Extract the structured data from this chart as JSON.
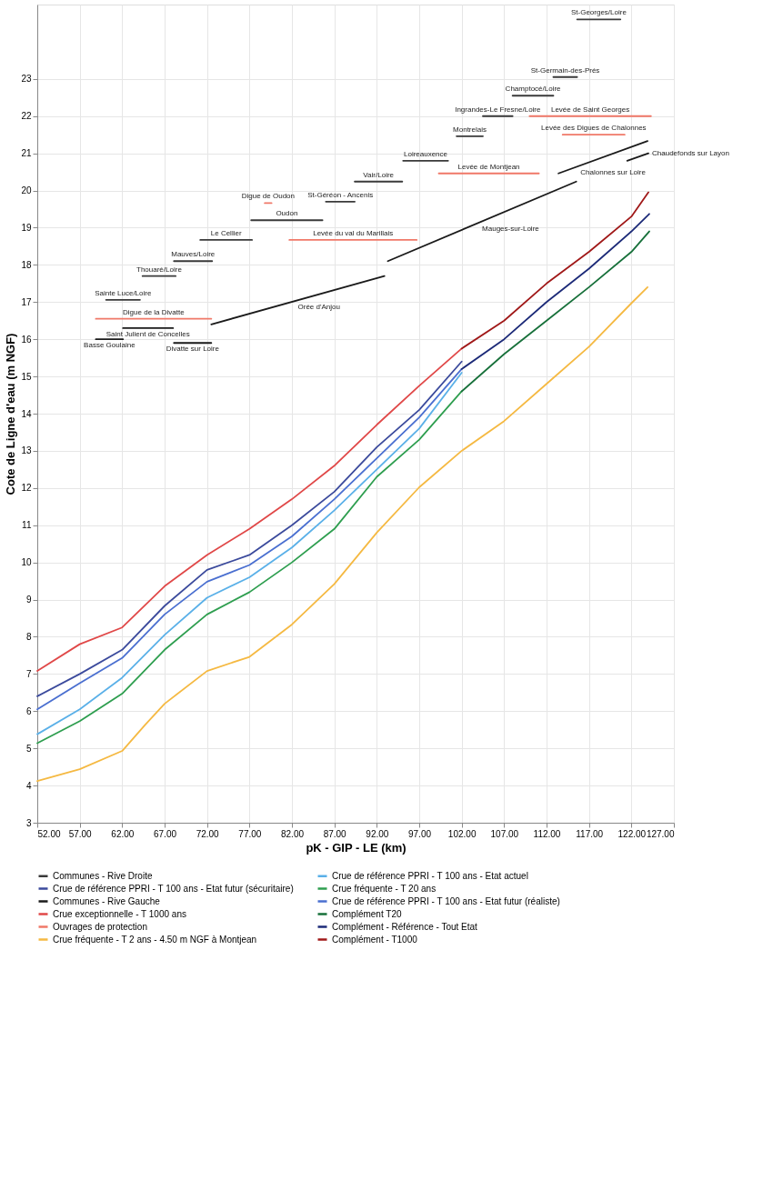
{
  "chart_data": {
    "type": "line",
    "xlabel": "pK - GIP - LE (km)",
    "ylabel": "Cote de Ligne d'eau (m NGF)",
    "xlim": [
      52,
      127
    ],
    "ylim": [
      3,
      25
    ],
    "xticks": [
      {
        "value": 52,
        "label": "52.00"
      },
      {
        "value": 57,
        "label": "57.00"
      },
      {
        "value": 62,
        "label": "62.00"
      },
      {
        "value": 67,
        "label": "67.00"
      },
      {
        "value": 72,
        "label": "72.00"
      },
      {
        "value": 77,
        "label": "77.00"
      },
      {
        "value": 82,
        "label": "82.00"
      },
      {
        "value": 87,
        "label": "87.00"
      },
      {
        "value": 92,
        "label": "92.00"
      },
      {
        "value": 97,
        "label": "97.00"
      },
      {
        "value": 102,
        "label": "102.00"
      },
      {
        "value": 107,
        "label": "107.00"
      },
      {
        "value": 112,
        "label": "112.00"
      },
      {
        "value": 117,
        "label": "117.00"
      },
      {
        "value": 122,
        "label": "122.00"
      },
      {
        "value": 127,
        "label": "127.00"
      }
    ],
    "yticks": [
      3,
      4,
      5,
      6,
      7,
      8,
      9,
      10,
      11,
      12,
      13,
      14,
      15,
      16,
      17,
      18,
      19,
      20,
      21,
      22,
      23
    ],
    "grid": true,
    "legend": "bottom",
    "line_style": "solid",
    "marker": "none",
    "series": [
      {
        "name": "Communes - Rive Droite",
        "color": "#3a3a3a",
        "x": [
          60.1,
          64.1,
          null,
          64.4,
          68.3,
          null,
          68.1,
          72.6,
          null,
          71.2,
          77.3,
          null,
          77.2,
          85.6,
          null,
          86.0,
          89.4,
          null,
          89.4,
          95.0,
          null,
          95.1,
          100.4,
          null,
          101.4,
          104.5,
          null,
          104.5,
          108.0,
          null,
          108.0,
          112.8,
          null,
          112.8,
          115.6,
          null,
          115.6,
          120.7
        ],
        "values": [
          17.06,
          17.06,
          null,
          17.7,
          17.7,
          null,
          18.1,
          18.1,
          null,
          18.67,
          18.67,
          null,
          19.2,
          19.2,
          null,
          19.7,
          19.7,
          null,
          20.24,
          20.24,
          null,
          20.8,
          20.8,
          null,
          21.46,
          21.46,
          null,
          22.0,
          22.0,
          null,
          22.55,
          22.55,
          null,
          23.05,
          23.05,
          null,
          24.6,
          24.6
        ]
      },
      {
        "name": "Crue de référence PPRI - T 100 ans - Etat actuel",
        "color": "#5ab0e8",
        "x": [
          52,
          57,
          62,
          67,
          72,
          77,
          82,
          87,
          92,
          97,
          102
        ],
        "values": [
          5.38,
          6.05,
          6.9,
          8.05,
          9.05,
          9.6,
          10.4,
          11.4,
          12.5,
          13.6,
          15.1
        ]
      },
      {
        "name": "Crue de référence PPRI - T 100 ans - Etat futur (sécuritaire)",
        "color": "#3b4a9c",
        "x": [
          52,
          57,
          62,
          67,
          72,
          77,
          82,
          87,
          92,
          97,
          102
        ],
        "values": [
          6.4,
          7.0,
          7.65,
          8.83,
          9.8,
          10.2,
          11.0,
          11.9,
          13.1,
          14.1,
          15.4
        ]
      },
      {
        "name": "Crue fréquente - T 20 ans",
        "color": "#2e9e4f",
        "x": [
          52,
          57,
          62,
          67,
          72,
          77,
          82,
          87,
          92,
          97,
          102
        ],
        "values": [
          5.14,
          5.73,
          6.47,
          7.65,
          8.6,
          9.2,
          10.0,
          10.9,
          12.3,
          13.3,
          14.6
        ]
      },
      {
        "name": "Communes - Rive Gauche",
        "color": "#1a1a1a",
        "x": [
          58.9,
          62.1,
          null,
          62.1,
          68.0,
          null,
          68.1,
          72.5,
          null,
          72.5,
          92.9,
          null,
          93.3,
          115.5,
          null,
          113.4,
          123.9,
          null,
          121.5,
          124.0
        ],
        "values": [
          16.0,
          16.0,
          null,
          16.3,
          16.3,
          null,
          15.9,
          15.9,
          null,
          16.4,
          17.7,
          null,
          18.1,
          20.24,
          null,
          20.46,
          21.33,
          null,
          20.8,
          21.0
        ]
      },
      {
        "name": "Crue de référence PPRI - T 100 ans - Etat futur (réaliste)",
        "color": "#4a6fd0",
        "x": [
          52,
          57,
          62,
          67,
          72,
          77,
          82,
          87,
          92,
          97,
          102
        ],
        "values": [
          6.05,
          6.75,
          7.43,
          8.6,
          9.48,
          9.93,
          10.7,
          11.7,
          12.8,
          13.9,
          15.2
        ]
      },
      {
        "name": "Crue exceptionnelle - T 1000 ans",
        "color": "#e04848",
        "x": [
          52,
          57,
          62,
          67,
          72,
          77,
          82,
          87,
          92,
          97,
          102
        ],
        "values": [
          7.08,
          7.8,
          8.25,
          9.36,
          10.2,
          10.9,
          11.7,
          12.6,
          13.7,
          14.75,
          15.75
        ]
      },
      {
        "name": "Complément T20",
        "color": "#17703a",
        "x": [
          102,
          107,
          112,
          117,
          122,
          124.1
        ],
        "values": [
          14.6,
          15.6,
          16.5,
          17.4,
          18.35,
          18.9
        ]
      },
      {
        "name": "Ouvrages de protection",
        "color": "#f07868",
        "x": [
          58.9,
          72.5,
          null,
          78.8,
          79.6,
          null,
          81.7,
          96.7,
          null,
          99.3,
          111.1,
          null,
          110.0,
          124.3,
          null,
          113.9,
          121.2
        ],
        "values": [
          16.55,
          16.55,
          null,
          19.66,
          19.66,
          null,
          18.67,
          18.67,
          null,
          20.46,
          20.46,
          null,
          22.0,
          22.0,
          null,
          21.5,
          21.5
        ]
      },
      {
        "name": "Complément - Référence - Tout Etat",
        "color": "#1c2a78",
        "x": [
          102,
          107,
          112,
          117,
          122,
          124.1
        ],
        "values": [
          15.2,
          16.0,
          17.0,
          17.9,
          18.9,
          19.37
        ]
      },
      {
        "name": "Crue fréquente - T 2 ans - 4.50 m NGF à Montjean",
        "color": "#f5b942",
        "x": [
          52,
          57,
          62,
          64.7,
          67,
          72,
          77,
          82,
          87,
          92,
          97,
          102,
          107,
          112,
          117,
          122,
          123.9
        ],
        "values": [
          4.12,
          4.44,
          4.93,
          5.63,
          6.2,
          7.08,
          7.46,
          8.33,
          9.42,
          10.8,
          12.02,
          13.0,
          13.8,
          14.8,
          15.8,
          16.97,
          17.4
        ]
      },
      {
        "name": "Complément - T1000",
        "color": "#a01818",
        "x": [
          102,
          107,
          112,
          117,
          122,
          124.0
        ],
        "values": [
          15.75,
          16.5,
          17.5,
          18.35,
          19.3,
          19.95
        ]
      }
    ],
    "annotations": [
      {
        "text": "Sainte Luce/Loire",
        "x": 62.1,
        "y": 17.06
      },
      {
        "text": "Thouaré/Loire",
        "x": 66.35,
        "y": 17.7
      },
      {
        "text": "Mauves/Loire",
        "x": 70.35,
        "y": 18.1
      },
      {
        "text": "Le Cellier",
        "x": 74.25,
        "y": 18.67
      },
      {
        "text": "Oudon",
        "x": 81.4,
        "y": 19.2
      },
      {
        "text": "Digue de Oudon",
        "x": 79.2,
        "y": 19.66
      },
      {
        "text": "St-Géréon - Ancenis",
        "x": 87.7,
        "y": 19.7
      },
      {
        "text": "Vair/Loire",
        "x": 92.2,
        "y": 20.24
      },
      {
        "text": "Loireauxence",
        "x": 97.75,
        "y": 20.8
      },
      {
        "text": "Montrelais",
        "x": 102.95,
        "y": 21.46
      },
      {
        "text": "Ingrandes-Le Fresne/Loire",
        "x": 106.25,
        "y": 22.0
      },
      {
        "text": "Champtocé/Loire",
        "x": 110.4,
        "y": 22.55
      },
      {
        "text": "St-Germain-des-Prés",
        "x": 114.2,
        "y": 23.05
      },
      {
        "text": "St-Georges/Loire",
        "x": 118.15,
        "y": 24.6
      },
      {
        "text": "Basse Goulaine",
        "x": 60.5,
        "y": 16.0
      },
      {
        "text": "Saint Julient de Concelles",
        "x": 65.05,
        "y": 16.3
      },
      {
        "text": "Divatte sur Loire",
        "x": 70.3,
        "y": 15.9
      },
      {
        "text": "Digue de la Divatte",
        "x": 65.7,
        "y": 16.55
      },
      {
        "text": "Orée d'Anjou",
        "x": 82.7,
        "y": 17.05
      },
      {
        "text": "Levée du val du Marillais",
        "x": 89.2,
        "y": 18.67
      },
      {
        "text": "Mauges-sur-Loire",
        "x": 104.4,
        "y": 19.17
      },
      {
        "text": "Levée de Montjean",
        "x": 105.2,
        "y": 20.46
      },
      {
        "text": "Chalonnes sur Loire",
        "x": 116.0,
        "y": 20.675
      },
      {
        "text": "Chaudefonds sur Layon",
        "x": 124.0,
        "y": 21.0
      },
      {
        "text": "Levée de Saint Georges",
        "x": 117.15,
        "y": 22.0
      },
      {
        "text": "Levée des Digues de Chalonnes",
        "x": 117.55,
        "y": 21.5
      }
    ]
  }
}
